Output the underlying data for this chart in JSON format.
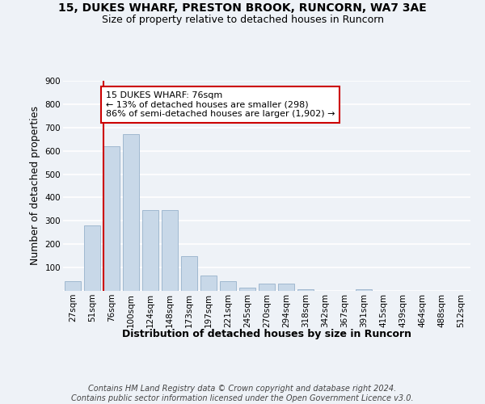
{
  "title1": "15, DUKES WHARF, PRESTON BROOK, RUNCORN, WA7 3AE",
  "title2": "Size of property relative to detached houses in Runcorn",
  "xlabel": "Distribution of detached houses by size in Runcorn",
  "ylabel": "Number of detached properties",
  "categories": [
    "27sqm",
    "51sqm",
    "76sqm",
    "100sqm",
    "124sqm",
    "148sqm",
    "173sqm",
    "197sqm",
    "221sqm",
    "245sqm",
    "270sqm",
    "294sqm",
    "318sqm",
    "342sqm",
    "367sqm",
    "391sqm",
    "415sqm",
    "439sqm",
    "464sqm",
    "488sqm",
    "512sqm"
  ],
  "values": [
    40,
    280,
    620,
    670,
    345,
    345,
    148,
    65,
    40,
    15,
    30,
    30,
    8,
    0,
    0,
    8,
    0,
    0,
    0,
    0,
    0
  ],
  "bar_color": "#c8d8e8",
  "bar_edge_color": "#a0b8d0",
  "highlight_index": 2,
  "highlight_line_color": "#cc0000",
  "annotation_text": "15 DUKES WHARF: 76sqm\n← 13% of detached houses are smaller (298)\n86% of semi-detached houses are larger (1,902) →",
  "annotation_box_color": "#ffffff",
  "annotation_box_edge_color": "#cc0000",
  "ylim": [
    0,
    900
  ],
  "yticks": [
    0,
    100,
    200,
    300,
    400,
    500,
    600,
    700,
    800,
    900
  ],
  "footer": "Contains HM Land Registry data © Crown copyright and database right 2024.\nContains public sector information licensed under the Open Government Licence v3.0.",
  "bg_color": "#eef2f7",
  "plot_bg_color": "#eef2f7",
  "grid_color": "#ffffff",
  "title1_fontsize": 10,
  "title2_fontsize": 9,
  "axis_label_fontsize": 9,
  "tick_fontsize": 7.5,
  "footer_fontsize": 7,
  "annotation_fontsize": 8
}
